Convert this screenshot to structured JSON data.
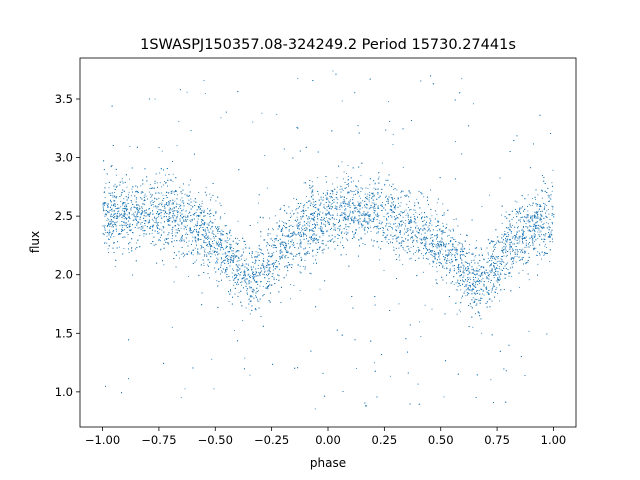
{
  "chart_data": {
    "type": "scatter",
    "title": "1SWASPJ150357.08-324249.2 Period 15730.27441s",
    "xlabel": "phase",
    "ylabel": "flux",
    "xlim": [
      -1.1,
      1.1
    ],
    "ylim": [
      0.7,
      3.85
    ],
    "x_ticks": [
      -1.0,
      -0.75,
      -0.5,
      -0.25,
      0.0,
      0.25,
      0.5,
      0.75,
      1.0
    ],
    "x_tick_labels": [
      "−1.00",
      "−0.75",
      "−0.50",
      "−0.25",
      "0.00",
      "0.25",
      "0.50",
      "0.75",
      "1.00"
    ],
    "y_ticks": [
      1.0,
      1.5,
      2.0,
      2.5,
      3.0,
      3.5
    ],
    "y_tick_labels": [
      "1.0",
      "1.5",
      "2.0",
      "2.5",
      "3.0",
      "3.5"
    ],
    "grid": false,
    "point_color": "#1f77b4",
    "series": [
      {
        "phase": [
          -1.0,
          -0.9,
          -0.8,
          -0.7,
          -0.6,
          -0.5,
          -0.45,
          -0.4,
          -0.35,
          -0.3,
          -0.25,
          -0.2,
          -0.1,
          0.0,
          0.1,
          0.2,
          0.3,
          0.4,
          0.5,
          0.55,
          0.6,
          0.65,
          0.7,
          0.75,
          0.8,
          0.9,
          1.0
        ],
        "flux_median": [
          2.48,
          2.53,
          2.55,
          2.52,
          2.42,
          2.27,
          2.17,
          2.05,
          1.95,
          2.0,
          2.12,
          2.25,
          2.42,
          2.5,
          2.55,
          2.54,
          2.48,
          2.38,
          2.24,
          2.14,
          2.03,
          1.93,
          1.97,
          2.1,
          2.25,
          2.4,
          2.48
        ],
        "scatter_halfwidth": 0.25
      }
    ]
  }
}
